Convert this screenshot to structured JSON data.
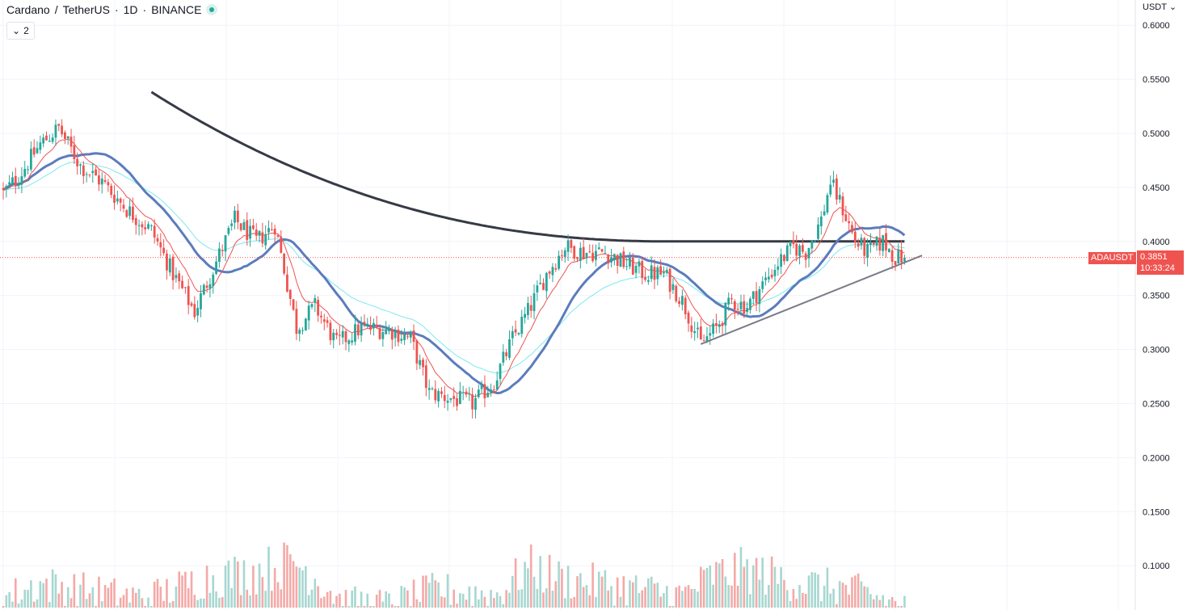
{
  "header": {
    "symbol": "Cardano",
    "separator": "/",
    "quote": "TetherUS",
    "interval": "1D",
    "exchange": "BINANCE",
    "indicator_count": "2"
  },
  "price_axis": {
    "unit": "USDT",
    "ticks": [
      "0.6000",
      "0.5500",
      "0.5000",
      "0.4500",
      "0.4000",
      "0.3500",
      "0.3000",
      "0.2500",
      "0.2000",
      "0.1500",
      "0.1000"
    ]
  },
  "last_price": {
    "symbol": "ADAUSDT",
    "price": "0.3851",
    "countdown": "10:33:24"
  },
  "colors": {
    "up": "#26a69a",
    "down": "#ef5350",
    "up_volume": "#a7d7d0",
    "down_volume": "#f4a9a7",
    "ma_long": "#363a45",
    "ma_medium": "#5b7cbd",
    "ma_short": "#ef5350",
    "ma_cyan": "#7ee8ee",
    "trendline": "#787b86"
  },
  "chart_data": {
    "type": "candlestick",
    "title": "Cardano / TetherUS · 1D · BINANCE",
    "ylabel": "USDT",
    "ylim": [
      0.18,
      0.62
    ],
    "grid": true,
    "close_anchors": [
      [
        0,
        0.445
      ],
      [
        5,
        0.46
      ],
      [
        12,
        0.49
      ],
      [
        18,
        0.505
      ],
      [
        25,
        0.47
      ],
      [
        32,
        0.455
      ],
      [
        40,
        0.43
      ],
      [
        48,
        0.41
      ],
      [
        55,
        0.37
      ],
      [
        62,
        0.335
      ],
      [
        68,
        0.375
      ],
      [
        75,
        0.42
      ],
      [
        82,
        0.4
      ],
      [
        88,
        0.415
      ],
      [
        95,
        0.32
      ],
      [
        101,
        0.34
      ],
      [
        108,
        0.305
      ],
      [
        116,
        0.32
      ],
      [
        125,
        0.318
      ],
      [
        132,
        0.31
      ],
      [
        138,
        0.26
      ],
      [
        145,
        0.255
      ],
      [
        152,
        0.25
      ],
      [
        159,
        0.27
      ],
      [
        165,
        0.31
      ],
      [
        170,
        0.335
      ],
      [
        176,
        0.37
      ],
      [
        182,
        0.395
      ],
      [
        188,
        0.39
      ],
      [
        195,
        0.39
      ],
      [
        201,
        0.38
      ],
      [
        208,
        0.37
      ],
      [
        214,
        0.37
      ],
      [
        220,
        0.345
      ],
      [
        226,
        0.305
      ],
      [
        231,
        0.32
      ],
      [
        236,
        0.345
      ],
      [
        241,
        0.34
      ],
      [
        246,
        0.36
      ],
      [
        251,
        0.38
      ],
      [
        256,
        0.395
      ],
      [
        260,
        0.39
      ],
      [
        265,
        0.42
      ],
      [
        268,
        0.455
      ],
      [
        272,
        0.43
      ],
      [
        276,
        0.4
      ],
      [
        280,
        0.39
      ],
      [
        285,
        0.4
      ],
      [
        289,
        0.385
      ],
      [
        292,
        0.3851
      ]
    ],
    "volume_profile": [
      [
        0,
        0.105
      ],
      [
        12,
        0.13
      ],
      [
        25,
        0.12
      ],
      [
        45,
        0.105
      ],
      [
        55,
        0.12
      ],
      [
        65,
        0.14
      ],
      [
        80,
        0.15
      ],
      [
        95,
        0.17
      ],
      [
        110,
        0.1
      ],
      [
        125,
        0.095
      ],
      [
        140,
        0.12
      ],
      [
        160,
        0.11
      ],
      [
        170,
        0.16
      ],
      [
        180,
        0.14
      ],
      [
        200,
        0.125
      ],
      [
        220,
        0.11
      ],
      [
        230,
        0.145
      ],
      [
        240,
        0.155
      ],
      [
        260,
        0.13
      ],
      [
        275,
        0.12
      ],
      [
        292,
        0.09
      ]
    ],
    "candle_count": 293,
    "moving_averages": [
      {
        "period": 200,
        "role": "long"
      },
      {
        "period": 50,
        "role": "medium"
      },
      {
        "period": 20,
        "role": "short"
      },
      {
        "period": 50,
        "role": "cyan-ema"
      }
    ],
    "trendline": {
      "from": [
        226,
        0.305
      ],
      "to": [
        294,
        0.387
      ]
    },
    "last_price": 0.3851
  }
}
